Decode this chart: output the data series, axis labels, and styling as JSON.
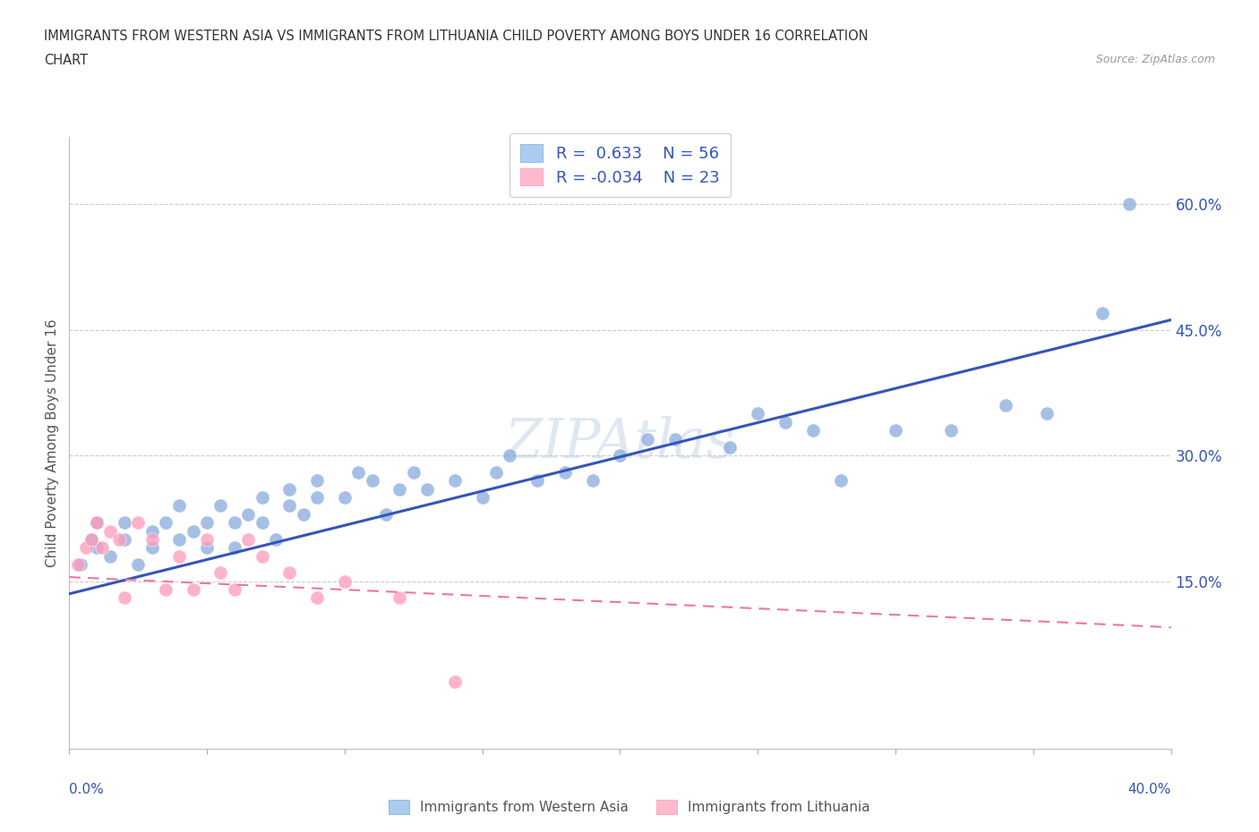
{
  "title_line1": "IMMIGRANTS FROM WESTERN ASIA VS IMMIGRANTS FROM LITHUANIA CHILD POVERTY AMONG BOYS UNDER 16 CORRELATION",
  "title_line2": "CHART",
  "source": "Source: ZipAtlas.com",
  "ylabel": "Child Poverty Among Boys Under 16",
  "ytick_labels": [
    "15.0%",
    "30.0%",
    "45.0%",
    "60.0%"
  ],
  "ytick_values": [
    0.15,
    0.3,
    0.45,
    0.6
  ],
  "xlim": [
    0.0,
    0.4
  ],
  "ylim": [
    -0.05,
    0.68
  ],
  "r_western": 0.633,
  "n_western": 56,
  "r_lithuania": -0.034,
  "n_lithuania": 23,
  "color_western": "#88AADD",
  "color_western_line": "#3355BB",
  "color_lithuania": "#FF99BB",
  "color_lithuania_line": "#EE7799",
  "color_legend_box_western": "#AACCEE",
  "color_legend_box_lithuania": "#FFBBCC",
  "western_x": [
    0.004,
    0.008,
    0.01,
    0.01,
    0.015,
    0.02,
    0.02,
    0.025,
    0.03,
    0.03,
    0.035,
    0.04,
    0.04,
    0.045,
    0.05,
    0.05,
    0.055,
    0.06,
    0.06,
    0.065,
    0.07,
    0.07,
    0.075,
    0.08,
    0.08,
    0.085,
    0.09,
    0.09,
    0.1,
    0.105,
    0.11,
    0.115,
    0.12,
    0.125,
    0.13,
    0.14,
    0.15,
    0.155,
    0.16,
    0.17,
    0.18,
    0.19,
    0.2,
    0.21,
    0.22,
    0.24,
    0.25,
    0.26,
    0.27,
    0.28,
    0.3,
    0.32,
    0.34,
    0.355,
    0.375,
    0.385
  ],
  "western_y": [
    0.17,
    0.2,
    0.19,
    0.22,
    0.18,
    0.2,
    0.22,
    0.17,
    0.21,
    0.19,
    0.22,
    0.2,
    0.24,
    0.21,
    0.22,
    0.19,
    0.24,
    0.22,
    0.19,
    0.23,
    0.22,
    0.25,
    0.2,
    0.24,
    0.26,
    0.23,
    0.25,
    0.27,
    0.25,
    0.28,
    0.27,
    0.23,
    0.26,
    0.28,
    0.26,
    0.27,
    0.25,
    0.28,
    0.3,
    0.27,
    0.28,
    0.27,
    0.3,
    0.32,
    0.32,
    0.31,
    0.35,
    0.34,
    0.33,
    0.27,
    0.33,
    0.33,
    0.36,
    0.35,
    0.47,
    0.6
  ],
  "lithuania_x": [
    0.003,
    0.006,
    0.008,
    0.01,
    0.012,
    0.015,
    0.018,
    0.02,
    0.025,
    0.03,
    0.035,
    0.04,
    0.045,
    0.05,
    0.055,
    0.06,
    0.065,
    0.07,
    0.08,
    0.09,
    0.1,
    0.12,
    0.14
  ],
  "lithuania_y": [
    0.17,
    0.19,
    0.2,
    0.22,
    0.19,
    0.21,
    0.2,
    0.13,
    0.22,
    0.2,
    0.14,
    0.18,
    0.14,
    0.2,
    0.16,
    0.14,
    0.2,
    0.18,
    0.16,
    0.13,
    0.15,
    0.13,
    0.03
  ],
  "western_trend_x0": 0.0,
  "western_trend_x1": 0.4,
  "western_trend_y0": 0.135,
  "western_trend_y1": 0.462,
  "lithuania_trend_x0": 0.0,
  "lithuania_trend_x1": 0.4,
  "lithuania_trend_y0": 0.155,
  "lithuania_trend_y1": 0.095
}
